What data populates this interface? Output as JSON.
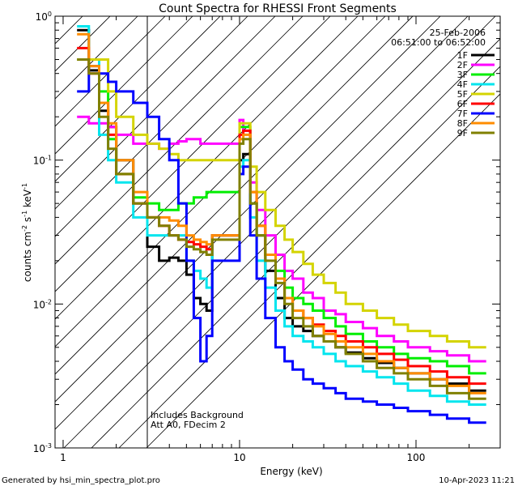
{
  "chart_data": {
    "type": "line",
    "title": "Count Spectra for RHESSI Front Segments",
    "xlabel": "Energy (keV)",
    "ylabel": {
      "base": "counts cm",
      "exp1": "-2",
      "mid": " s",
      "exp2": "-1",
      "tail": " keV",
      "exp3": "-1"
    },
    "xscale": "log",
    "yscale": "log",
    "xlim": [
      0.9,
      300
    ],
    "ylim": [
      0.001,
      1.0
    ],
    "x_ticks": [
      {
        "value": 1,
        "label": "1"
      },
      {
        "value": 10,
        "label": "10"
      },
      {
        "value": 100,
        "label": "100"
      }
    ],
    "y_ticks": [
      {
        "value": 0.001,
        "base": "10",
        "exp": "-3"
      },
      {
        "value": 0.01,
        "base": "10",
        "exp": "-2"
      },
      {
        "value": 0.1,
        "base": "10",
        "exp": "-1"
      },
      {
        "value": 1,
        "base": "10",
        "exp": "0"
      }
    ],
    "hatched_region_keV": [
      0.9,
      3.0
    ],
    "date_text": "25-Feb-2006",
    "time_text": "06:51:00 to 06:52:00",
    "annotations": [
      "Includes Background",
      "Att A0, FDecim 2"
    ],
    "legend_position": "top-right",
    "series": [
      {
        "name": "1F",
        "color": "#000000",
        "values": [
          0.8,
          0.42,
          0.22,
          0.17,
          0.1,
          0.05,
          0.025,
          0.02,
          0.021,
          0.02,
          0.016,
          0.011,
          0.01,
          0.009,
          0.03,
          0.1,
          0.11,
          0.05,
          0.03,
          0.017,
          0.011,
          0.008,
          0.007,
          0.0065,
          0.006,
          0.0055,
          0.005,
          0.0046,
          0.0042,
          0.0039,
          0.0036,
          0.0033,
          0.003,
          0.0028,
          0.0025
        ]
      },
      {
        "name": "2F",
        "color": "#ff00ff",
        "values": [
          0.2,
          0.18,
          0.18,
          0.17,
          0.15,
          0.13,
          0.13,
          0.12,
          0.13,
          0.135,
          0.14,
          0.14,
          0.13,
          0.13,
          0.13,
          0.19,
          0.16,
          0.07,
          0.045,
          0.03,
          0.022,
          0.017,
          0.015,
          0.012,
          0.011,
          0.009,
          0.0085,
          0.0075,
          0.0068,
          0.006,
          0.0055,
          0.005,
          0.0047,
          0.0044,
          0.004
        ]
      },
      {
        "name": "3F",
        "color": "#00ee00",
        "values": [
          0.5,
          0.5,
          0.3,
          0.14,
          0.08,
          0.055,
          0.05,
          0.045,
          0.045,
          0.05,
          0.05,
          0.055,
          0.055,
          0.06,
          0.06,
          0.17,
          0.17,
          0.05,
          0.03,
          0.022,
          0.017,
          0.013,
          0.011,
          0.01,
          0.009,
          0.008,
          0.007,
          0.0062,
          0.0055,
          0.005,
          0.0045,
          0.0042,
          0.004,
          0.0037,
          0.0033
        ]
      },
      {
        "name": "4F",
        "color": "#00e5ee",
        "values": [
          0.85,
          0.5,
          0.15,
          0.1,
          0.07,
          0.04,
          0.03,
          0.03,
          0.03,
          0.03,
          0.02,
          0.017,
          0.015,
          0.013,
          0.03,
          0.09,
          0.1,
          0.04,
          0.02,
          0.013,
          0.009,
          0.007,
          0.006,
          0.0055,
          0.005,
          0.0045,
          0.004,
          0.0037,
          0.0034,
          0.0031,
          0.0028,
          0.0025,
          0.0023,
          0.0021,
          0.002
        ]
      },
      {
        "name": "5F",
        "color": "#d4d400",
        "values": [
          0.5,
          0.5,
          0.5,
          0.3,
          0.2,
          0.15,
          0.13,
          0.12,
          0.11,
          0.1,
          0.1,
          0.1,
          0.1,
          0.1,
          0.1,
          0.18,
          0.18,
          0.09,
          0.06,
          0.045,
          0.035,
          0.028,
          0.023,
          0.019,
          0.016,
          0.014,
          0.012,
          0.01,
          0.009,
          0.008,
          0.0072,
          0.0065,
          0.006,
          0.0055,
          0.005
        ]
      },
      {
        "name": "6F",
        "color": "#ff0000",
        "values": [
          0.6,
          0.4,
          0.25,
          0.15,
          0.08,
          0.05,
          0.04,
          0.035,
          0.03,
          0.028,
          0.027,
          0.026,
          0.025,
          0.024,
          0.03,
          0.15,
          0.16,
          0.06,
          0.035,
          0.022,
          0.015,
          0.011,
          0.009,
          0.008,
          0.0072,
          0.0065,
          0.006,
          0.0055,
          0.005,
          0.0045,
          0.0041,
          0.0037,
          0.0034,
          0.0031,
          0.0028
        ]
      },
      {
        "name": "7F",
        "color": "#0000ff",
        "values": [
          0.3,
          0.45,
          0.4,
          0.35,
          0.3,
          0.25,
          0.2,
          0.14,
          0.1,
          0.05,
          0.02,
          0.008,
          0.004,
          0.006,
          0.02,
          0.08,
          0.09,
          0.03,
          0.015,
          0.008,
          0.005,
          0.004,
          0.0035,
          0.003,
          0.0028,
          0.0026,
          0.0024,
          0.0022,
          0.0021,
          0.002,
          0.0019,
          0.0018,
          0.0017,
          0.0016,
          0.0015
        ]
      },
      {
        "name": "8F",
        "color": "#ff8c00",
        "values": [
          0.75,
          0.45,
          0.25,
          0.18,
          0.1,
          0.06,
          0.04,
          0.04,
          0.038,
          0.035,
          0.03,
          0.028,
          0.027,
          0.026,
          0.03,
          0.14,
          0.15,
          0.06,
          0.035,
          0.022,
          0.015,
          0.011,
          0.009,
          0.008,
          0.007,
          0.0062,
          0.0055,
          0.005,
          0.0045,
          0.004,
          0.0036,
          0.0033,
          0.003,
          0.0027,
          0.0024
        ]
      },
      {
        "name": "9F",
        "color": "#808000",
        "values": [
          0.5,
          0.4,
          0.2,
          0.12,
          0.08,
          0.05,
          0.04,
          0.035,
          0.03,
          0.028,
          0.025,
          0.024,
          0.023,
          0.022,
          0.028,
          0.13,
          0.14,
          0.05,
          0.03,
          0.02,
          0.014,
          0.01,
          0.008,
          0.007,
          0.006,
          0.0055,
          0.005,
          0.0045,
          0.004,
          0.0036,
          0.0033,
          0.003,
          0.0027,
          0.0024,
          0.0022
        ]
      }
    ],
    "energy_bins_keV": [
      1.2,
      1.4,
      1.6,
      1.8,
      2.0,
      2.5,
      3.0,
      3.5,
      4.0,
      4.5,
      5.0,
      5.5,
      6.0,
      6.5,
      7.0,
      10.0,
      10.5,
      11.5,
      12.5,
      14,
      16,
      18,
      20,
      23,
      26,
      30,
      35,
      40,
      50,
      60,
      75,
      90,
      120,
      150,
      200,
      250
    ]
  },
  "footer": {
    "generated_by": "Generated by hsi_min_spectra_plot.pro",
    "timestamp": "10-Apr-2023 11:21"
  }
}
